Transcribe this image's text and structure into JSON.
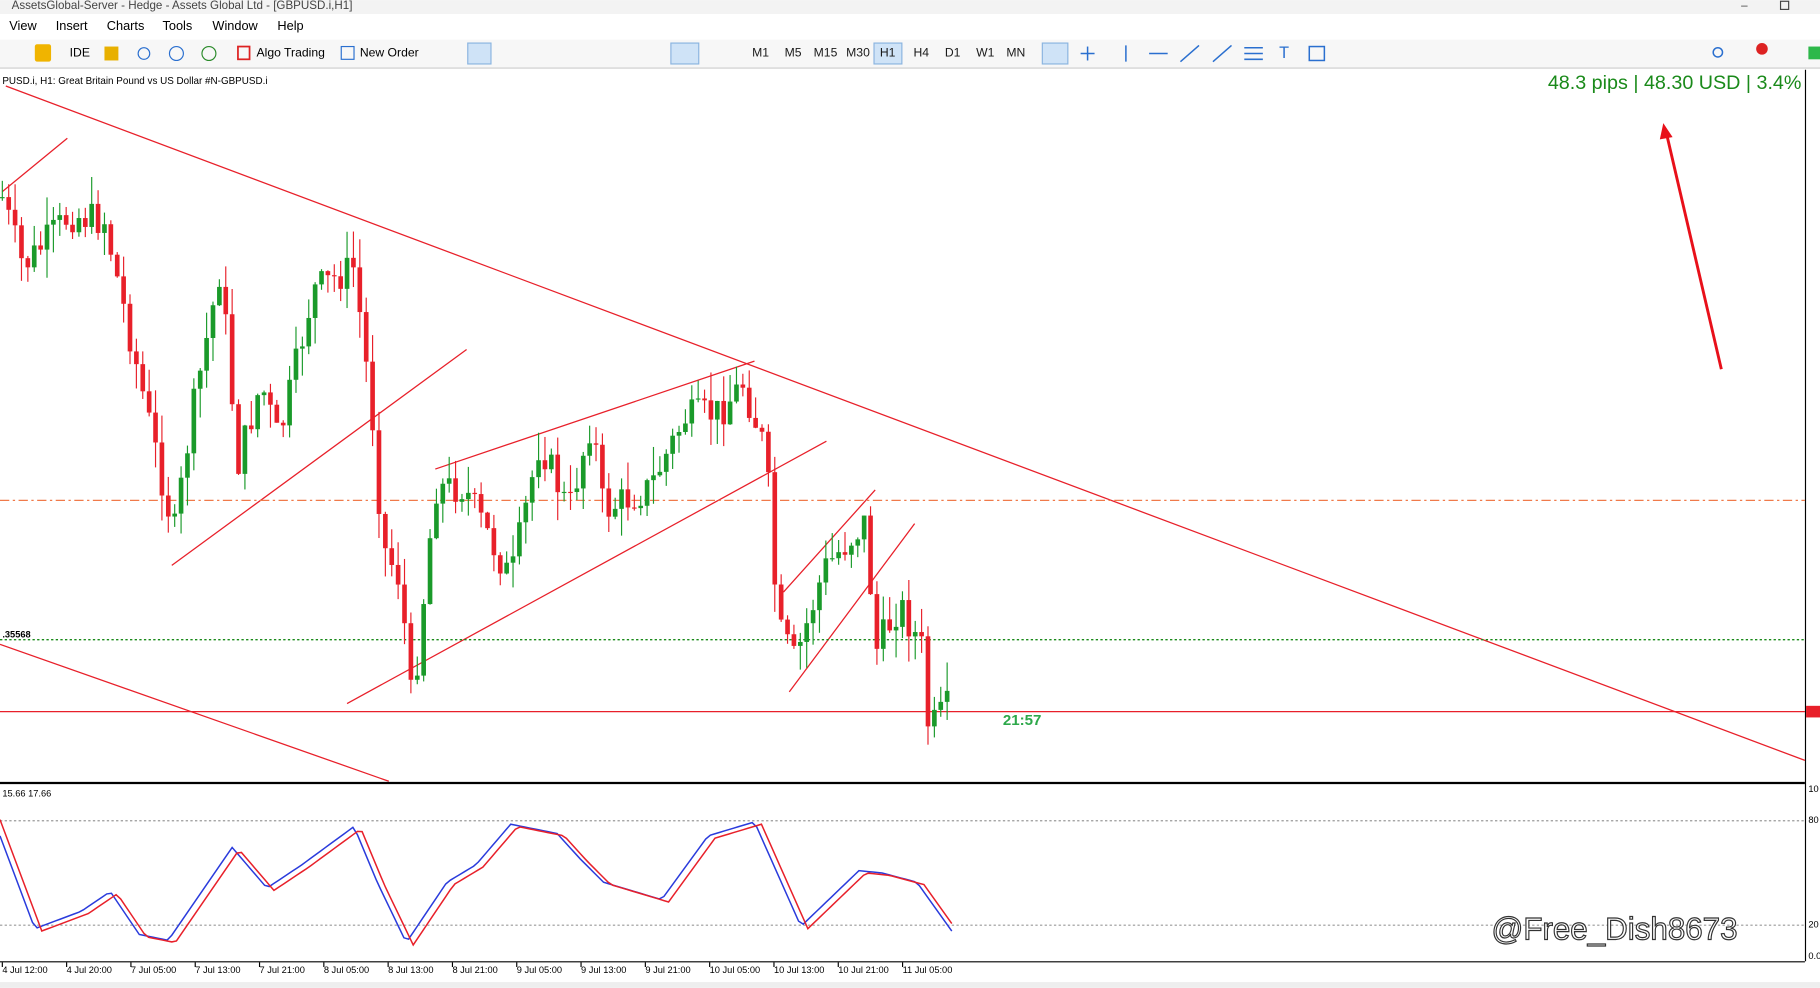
{
  "window": {
    "title": "AssetsGlobal-Server - Hedge - Assets Global Ltd - [GBPUSD.i,H1]"
  },
  "menu": [
    "View",
    "Insert",
    "Charts",
    "Tools",
    "Window",
    "Help"
  ],
  "toolbar": {
    "ide": "IDE",
    "algo": "Algo Trading",
    "order": "New Order",
    "timeframes": [
      "M1",
      "M5",
      "M15",
      "M30",
      "H1",
      "H4",
      "D1",
      "W1",
      "MN"
    ],
    "active": "H1"
  },
  "chart": {
    "label": "PUSD.i, H1:  Great Britain Pound vs US Dollar #N-GBPUSD.i",
    "profit": "48.3 pips | 48.30 USD | 3.4%",
    "timer": "21:57",
    "level": ".35568"
  },
  "indicator": {
    "label": "15.66 17.66",
    "levels": [
      "10",
      "80",
      "20",
      "0.0"
    ]
  },
  "time_axis": [
    "4 Jul 12:00",
    "4 Jul 20:00",
    "7 Jul 05:00",
    "7 Jul 13:00",
    "7 Jul 21:00",
    "8 Jul 05:00",
    "8 Jul 13:00",
    "8 Jul 21:00",
    "9 Jul 05:00",
    "9 Jul 13:00",
    "9 Jul 21:00",
    "10 Jul 05:00",
    "10 Jul 13:00",
    "10 Jul 21:00",
    "11 Jul 05:00"
  ],
  "watermark": "@Free_Dish8673"
}
